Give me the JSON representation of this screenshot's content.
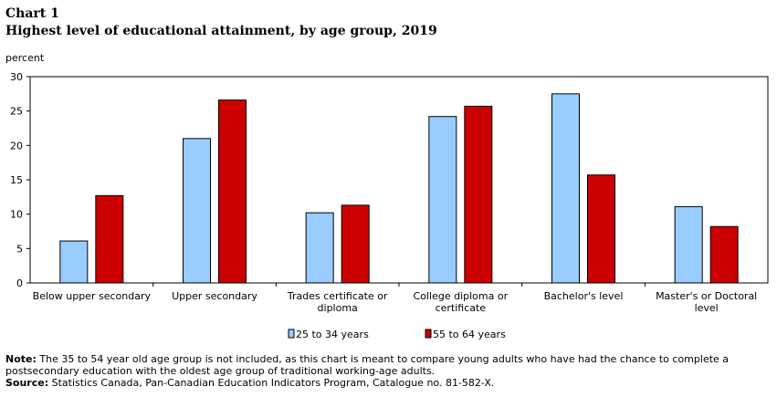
{
  "chart_label": "Chart 1",
  "chart_title": "Highest level of educational attainment, by age group, 2019",
  "note_label": "Note:",
  "note_text": "The 35 to 54 year old age group is not included, as this chart is meant to compare young adults who have had the chance to complete a postsecondary education with the oldest age group of traditional working-age adults.",
  "source_label": "Source:",
  "source_text": "Statistics Canada, Pan-Canadian Education Indicators Program, Catalogue no. 81-582-X.",
  "chart_data": {
    "type": "bar",
    "title": "Highest level of educational attainment, by age group, 2019",
    "ylabel": "percent",
    "xlabel": "",
    "ylim": [
      0,
      30
    ],
    "yticks": [
      0,
      5,
      10,
      15,
      20,
      25,
      30
    ],
    "grid": false,
    "legend_position": "bottom",
    "categories": [
      [
        "Below upper secondary"
      ],
      [
        "Upper secondary"
      ],
      [
        "Trades certificate or",
        "diploma"
      ],
      [
        "College diploma or",
        "certificate"
      ],
      [
        "Bachelor's level"
      ],
      [
        "Master's or Doctoral",
        "level"
      ]
    ],
    "series": [
      {
        "name": "25 to 34 years",
        "color": "#99ccff",
        "values": [
          6.1,
          21.0,
          10.2,
          24.2,
          27.5,
          11.1
        ]
      },
      {
        "name": "55 to 64 years",
        "color": "#cc0000",
        "values": [
          12.7,
          26.6,
          11.3,
          25.7,
          15.7,
          8.2
        ]
      }
    ]
  }
}
